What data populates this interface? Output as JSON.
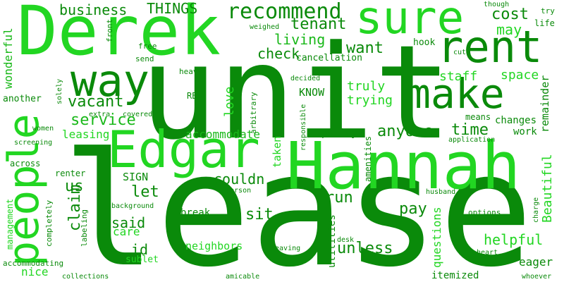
{
  "palette": {
    "dark_green": "#0a8a0a",
    "mid_green": "#19b819",
    "bright_green": "#22d622",
    "lime_green": "#2ee02e"
  },
  "words": [
    {
      "text": "lease",
      "color": "#0a8a0a"
    },
    {
      "text": "unit",
      "color": "#0a8a0a"
    },
    {
      "text": "Hannah",
      "color": "#22d622"
    },
    {
      "text": "Derek",
      "color": "#22d622"
    },
    {
      "text": "Edgar",
      "color": "#22d622"
    },
    {
      "text": "people",
      "color": "#22d622"
    },
    {
      "text": "rent",
      "color": "#0a8a0a"
    },
    {
      "text": "make",
      "color": "#0a8a0a"
    },
    {
      "text": "sure",
      "color": "#22d622"
    },
    {
      "text": "way",
      "color": "#0a8a0a"
    },
    {
      "text": "business",
      "color": "#0a8a0a"
    },
    {
      "text": "THINGS",
      "color": "#0a8a0a"
    },
    {
      "text": "recommend",
      "color": "#0a8a0a"
    },
    {
      "text": "tenant",
      "color": "#0a8a0a"
    },
    {
      "text": "cost",
      "color": "#0a8a0a"
    },
    {
      "text": "may",
      "color": "#22d622"
    },
    {
      "text": "living",
      "color": "#19b819"
    },
    {
      "text": "want",
      "color": "#0a8a0a"
    },
    {
      "text": "check",
      "color": "#0a8a0a"
    },
    {
      "text": "cancellation",
      "color": "#0a8a0a"
    },
    {
      "text": "hook",
      "color": "#0a8a0a"
    },
    {
      "text": "staff",
      "color": "#22d622"
    },
    {
      "text": "space",
      "color": "#22d622"
    },
    {
      "text": "vacant",
      "color": "#0a8a0a"
    },
    {
      "text": "truly",
      "color": "#22d622"
    },
    {
      "text": "trying",
      "color": "#22d622"
    },
    {
      "text": "KNOW",
      "color": "#0a8a0a"
    },
    {
      "text": "love",
      "color": "#22d622"
    },
    {
      "text": "service",
      "color": "#19b819"
    },
    {
      "text": "leasing",
      "color": "#22d622"
    },
    {
      "text": "accommodate",
      "color": "#19b819"
    },
    {
      "text": "anyone",
      "color": "#0a8a0a"
    },
    {
      "text": "time",
      "color": "#0a8a0a"
    },
    {
      "text": "policy",
      "color": "#0a8a0a"
    },
    {
      "text": "work",
      "color": "#0a8a0a"
    },
    {
      "text": "changes",
      "color": "#0a8a0a"
    },
    {
      "text": "remainder",
      "color": "#0a8a0a"
    },
    {
      "text": "Beautiful",
      "color": "#22d622"
    },
    {
      "text": "us",
      "color": "#0a8a0a"
    },
    {
      "text": "let",
      "color": "#0a8a0a"
    },
    {
      "text": "SIGN",
      "color": "#0a8a0a"
    },
    {
      "text": "couldn",
      "color": "#0a8a0a"
    },
    {
      "text": "run",
      "color": "#0a8a0a"
    },
    {
      "text": "pay",
      "color": "#0a8a0a"
    },
    {
      "text": "claim",
      "color": "#0a8a0a"
    },
    {
      "text": "said",
      "color": "#0a8a0a"
    },
    {
      "text": "sit",
      "color": "#0a8a0a"
    },
    {
      "text": "break",
      "color": "#0a8a0a"
    },
    {
      "text": "care",
      "color": "#22d622"
    },
    {
      "text": "id",
      "color": "#0a8a0a"
    },
    {
      "text": "sublet",
      "color": "#22d622"
    },
    {
      "text": "neighbors",
      "color": "#22d622"
    },
    {
      "text": "unless",
      "color": "#0a8a0a"
    },
    {
      "text": "helpful",
      "color": "#22d622"
    },
    {
      "text": "eager",
      "color": "#0a8a0a"
    },
    {
      "text": "itemized",
      "color": "#0a8a0a"
    },
    {
      "text": "nice",
      "color": "#22d622"
    },
    {
      "text": "accommodating",
      "color": "#0a8a0a"
    },
    {
      "text": "collections",
      "color": "#0a8a0a"
    },
    {
      "text": "amicable",
      "color": "#0a8a0a"
    },
    {
      "text": "whoever",
      "color": "#0a8a0a"
    },
    {
      "text": "wonderful",
      "color": "#19b819"
    },
    {
      "text": "another",
      "color": "#0a8a0a"
    },
    {
      "text": "front",
      "color": "#0a8a0a"
    },
    {
      "text": "free",
      "color": "#0a8a0a"
    },
    {
      "text": "send",
      "color": "#0a8a0a"
    },
    {
      "text": "heavy",
      "color": "#0a8a0a"
    },
    {
      "text": "weighed",
      "color": "#0a8a0a"
    },
    {
      "text": "though",
      "color": "#0a8a0a"
    },
    {
      "text": "try",
      "color": "#0a8a0a"
    },
    {
      "text": "life",
      "color": "#0a8a0a"
    },
    {
      "text": "cut",
      "color": "#0a8a0a"
    },
    {
      "text": "decided",
      "color": "#0a8a0a"
    },
    {
      "text": "solely",
      "color": "#0a8a0a"
    },
    {
      "text": "RBS",
      "color": "#0a8a0a"
    },
    {
      "text": "extra",
      "color": "#0a8a0a"
    },
    {
      "text": "covered",
      "color": "#0a8a0a"
    },
    {
      "text": "women",
      "color": "#0a8a0a"
    },
    {
      "text": "screening",
      "color": "#0a8a0a"
    },
    {
      "text": "arbitrary",
      "color": "#0a8a0a"
    },
    {
      "text": "responsible",
      "color": "#0a8a0a"
    },
    {
      "text": "taken",
      "color": "#22d622"
    },
    {
      "text": "means",
      "color": "#0a8a0a"
    },
    {
      "text": "application",
      "color": "#0a8a0a"
    },
    {
      "text": "across",
      "color": "#0a8a0a"
    },
    {
      "text": "renter",
      "color": "#0a8a0a"
    },
    {
      "text": "management",
      "color": "#22d622"
    },
    {
      "text": "completely",
      "color": "#0a8a0a"
    },
    {
      "text": "labeling",
      "color": "#0a8a0a"
    },
    {
      "text": "background",
      "color": "#0a8a0a"
    },
    {
      "text": "person",
      "color": "#0a8a0a"
    },
    {
      "text": "amenities",
      "color": "#0a8a0a"
    },
    {
      "text": "husband",
      "color": "#0a8a0a"
    },
    {
      "text": "options",
      "color": "#0a8a0a"
    },
    {
      "text": "charge",
      "color": "#0a8a0a"
    },
    {
      "text": "questions",
      "color": "#22d622"
    },
    {
      "text": "utilities",
      "color": "#0a8a0a"
    },
    {
      "text": "desk",
      "color": "#0a8a0a"
    },
    {
      "text": "heart",
      "color": "#0a8a0a"
    },
    {
      "text": "leaving",
      "color": "#0a8a0a"
    }
  ]
}
